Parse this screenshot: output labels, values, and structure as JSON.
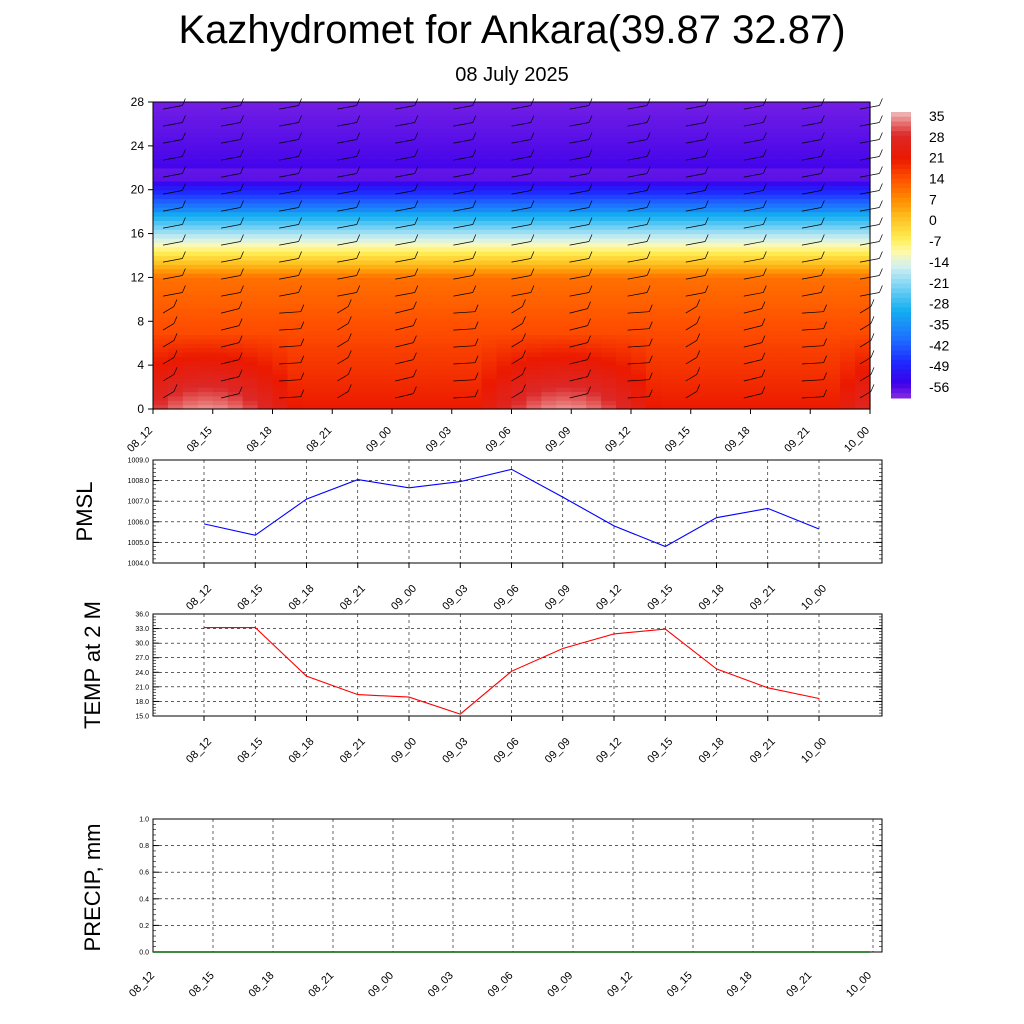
{
  "title": "Kazhydromet for Ankara(39.87 32.87)",
  "subtitle": "08 July 2025",
  "colors": {
    "pmsl_line": "#0000ff",
    "temp_line": "#ff0000",
    "precip_line": "#006400",
    "grid": "#000000"
  },
  "chart_data": [
    {
      "type": "heatmap",
      "name": "temperature-cross-section",
      "x_ticks": [
        "08_12",
        "08_15",
        "08_18",
        "08_21",
        "09_00",
        "09_03",
        "09_06",
        "09_09",
        "09_12",
        "09_15",
        "09_18",
        "09_21",
        "10_00"
      ],
      "y_ticks": [
        0,
        4,
        8,
        12,
        16,
        20,
        24,
        28
      ],
      "ylim": [
        0,
        28
      ],
      "colorbar_labels": [
        "35",
        "28",
        "21",
        "14",
        "7",
        "0",
        "-7",
        "-14",
        "-21",
        "-28",
        "-35",
        "-42",
        "-49",
        "-56"
      ],
      "colorbar_range": [
        -60,
        38
      ],
      "wind_barbs": true
    },
    {
      "type": "line",
      "name": "pmsl",
      "ylabel": "PMSL",
      "x": [
        "08_12",
        "08_15",
        "08_18",
        "08_21",
        "09_00",
        "09_03",
        "09_06",
        "09_09",
        "09_12",
        "09_15",
        "09_18",
        "09_21",
        "10_00"
      ],
      "y_ticks": [
        "1009.0",
        "1008.0",
        "1007.0",
        "1006.0",
        "1005.0",
        "1004.0"
      ],
      "ylim": [
        1004,
        1009
      ],
      "values": [
        1005.9,
        1005.35,
        1007.1,
        1008.05,
        1007.65,
        1007.95,
        1008.55,
        1007.2,
        1005.8,
        1004.8,
        1006.2,
        1006.65,
        1005.65
      ],
      "grid": true
    },
    {
      "type": "line",
      "name": "temp-2m",
      "ylabel": "TEMP at 2 M",
      "x": [
        "08_12",
        "08_15",
        "08_18",
        "08_21",
        "09_00",
        "09_03",
        "09_06",
        "09_09",
        "09_12",
        "09_15",
        "09_18",
        "09_21",
        "10_00"
      ],
      "y_ticks": [
        "36.0",
        "33.0",
        "30.0",
        "27.0",
        "24.0",
        "21.0",
        "18.0",
        "15.0"
      ],
      "ylim": [
        15,
        36
      ],
      "values": [
        33.2,
        33.2,
        23.2,
        19.4,
        18.9,
        15.4,
        24.2,
        28.9,
        31.9,
        32.9,
        24.7,
        20.8,
        18.6
      ],
      "grid": true
    },
    {
      "type": "line",
      "name": "precip",
      "ylabel": "PRECIP, mm",
      "x": [
        "08_12",
        "08_15",
        "08_18",
        "08_21",
        "09_00",
        "09_03",
        "09_06",
        "09_09",
        "09_12",
        "09_15",
        "09_18",
        "09_21",
        "10_00"
      ],
      "y_ticks": [
        "1.0",
        "0.8",
        "0.6",
        "0.4",
        "0.2",
        "0.0"
      ],
      "ylim": [
        0,
        1
      ],
      "values": [
        0,
        0,
        0,
        0,
        0,
        0,
        0,
        0,
        0,
        0,
        0,
        0,
        0
      ],
      "grid": true
    }
  ]
}
